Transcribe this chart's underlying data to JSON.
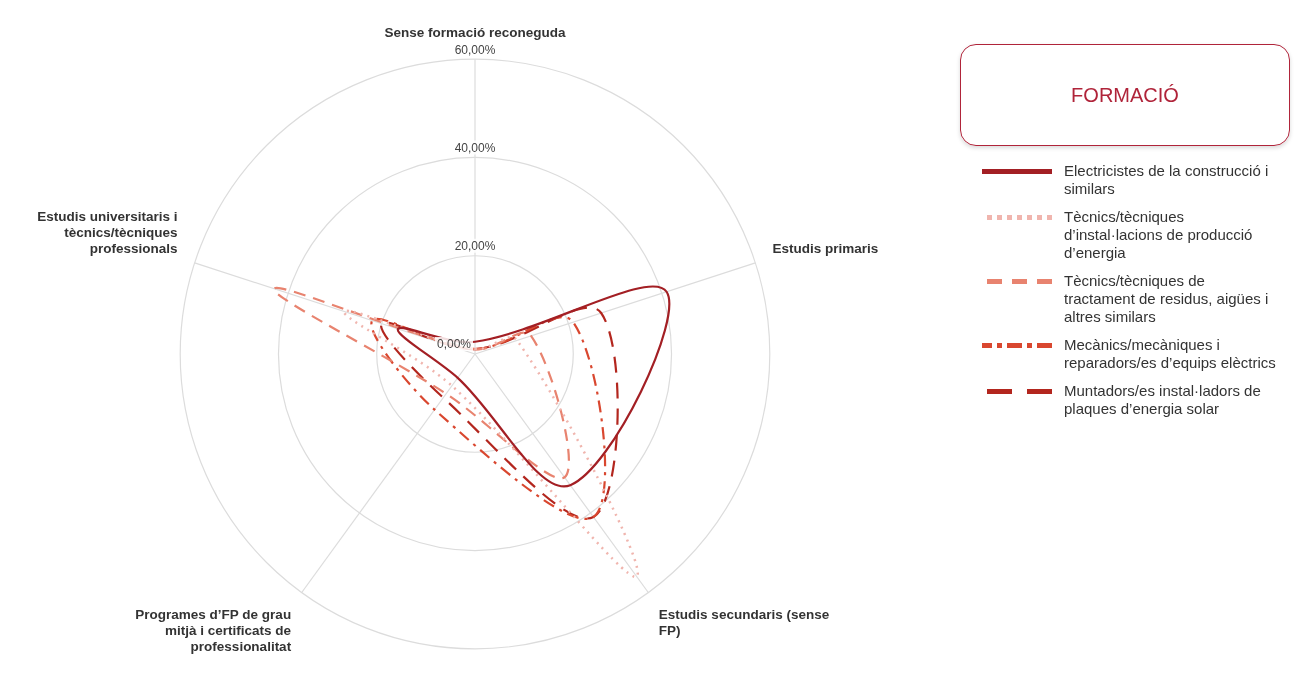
{
  "chart_data": {
    "type": "radar",
    "legend_title": "FORMACIÓ",
    "categories": [
      "Sense formació reconeguda",
      "Estudis primaris",
      "Estudis secundaris (sense FP)",
      "Programes d’FP de grau mitjà i certificats de professionalitat",
      "Estudis universitaris i tècnics/tècniques professionals"
    ],
    "series": [
      {
        "name": "Electricistes de la construcció i similars",
        "color": "#a31f24",
        "line_style": "solid",
        "values": [
          2.5,
          41,
          33,
          6,
          16.5
        ]
      },
      {
        "name": "Tècnics/tècniques d’instal·lacions de producció d’energia",
        "color": "#f0b5ae",
        "line_style": "dotted",
        "values": [
          1,
          9,
          56,
          8,
          28
        ]
      },
      {
        "name": "Tècnics/tècniques de tractament de residus, aigües i altres similars",
        "color": "#e8836f",
        "line_style": "dashed",
        "values": [
          1,
          12,
          31,
          10,
          43
        ]
      },
      {
        "name": "Mecànics/mecàniques i reparadors/es d’equips elèctrics",
        "color": "#d9472f",
        "line_style": "dashdot",
        "values": [
          1,
          21,
          41,
          14,
          22
        ]
      },
      {
        "name": "Muntadors/es instal·ladors de plaques d’energia solar",
        "color": "#b3261e",
        "line_style": "longdash",
        "values": [
          1,
          27,
          41,
          11,
          20
        ]
      }
    ],
    "ylim": [
      0,
      60
    ],
    "yticks": [
      {
        "value": 0,
        "label": "0,00%"
      },
      {
        "value": 20,
        "label": "20,00%"
      },
      {
        "value": 40,
        "label": "40,00%"
      },
      {
        "value": 60,
        "label": "60,00%"
      }
    ],
    "grid": true,
    "legend": "right",
    "marker": "none"
  }
}
